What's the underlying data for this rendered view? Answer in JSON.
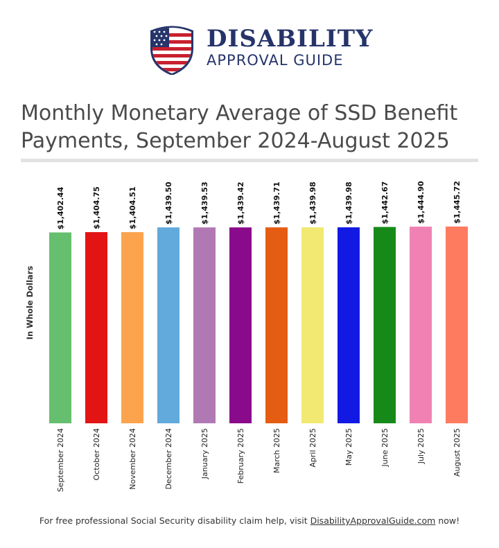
{
  "brand": {
    "name_line1": "DISABILITY",
    "name_line2": "APPROVAL GUIDE",
    "colors": {
      "navy": "#26346a",
      "red": "#c8202f"
    }
  },
  "chart_data": {
    "type": "bar",
    "title": "Monthly Monetary Average of SSD Benefit Payments, September 2024-August 2025",
    "ylabel": "In Whole Dollars",
    "xlabel": "",
    "ylim": [
      0,
      1445.72
    ],
    "categories": [
      "September 2024",
      "October 2024",
      "November 2024",
      "December 2024",
      "January 2025",
      "February 2025",
      "March 2025",
      "April 2025",
      "May 2025",
      "June 2025",
      "July 2025",
      "August 2025"
    ],
    "values": [
      1402.44,
      1404.75,
      1404.51,
      1439.5,
      1439.53,
      1439.42,
      1439.71,
      1439.98,
      1439.98,
      1442.67,
      1444.9,
      1445.72
    ],
    "data_labels": [
      "$1,402.44",
      "$1,404.75",
      "$1,404.51",
      "$1,439.50",
      "$1,439.53",
      "$1,439.42",
      "$1,439.71",
      "$1,439.98",
      "$1,439.98",
      "$1,442.67",
      "$1,444.90",
      "$1,445.72"
    ],
    "colors": [
      "#66bf6e",
      "#e21414",
      "#fba34d",
      "#62a9dc",
      "#b179b3",
      "#8a0a8c",
      "#e55d12",
      "#f1e971",
      "#1219e3",
      "#168a19",
      "#f082b3",
      "#fe7b60"
    ],
    "grid": false,
    "legend": "none"
  },
  "footer": {
    "text_before": "For free professional Social Security disability claim help, visit ",
    "link_text": "DisabilityApprovalGuide.com",
    "text_after": " now!"
  }
}
